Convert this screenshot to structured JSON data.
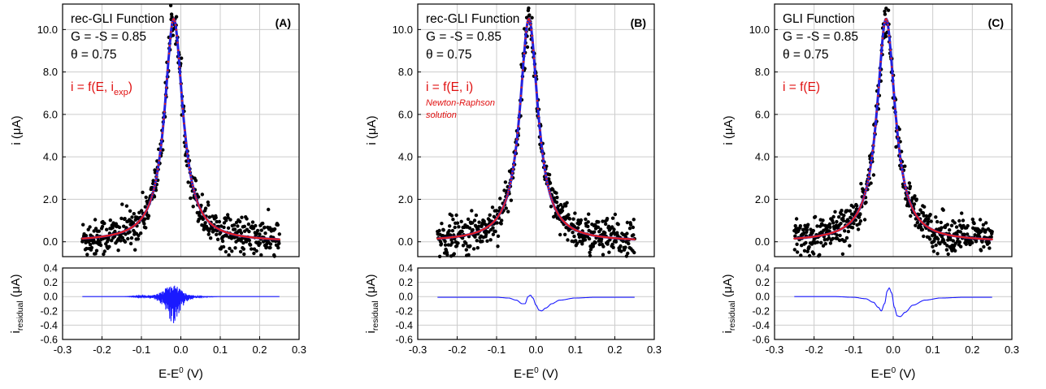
{
  "colors": {
    "points": "#000000",
    "fit_line": "#2020e0",
    "model_dots": "#e02020",
    "residual_line": "#1a1aff",
    "annotation_red": "#e01010",
    "grid": "#cccccc"
  },
  "chart_data": [
    {
      "type": "scatter",
      "panel": "A",
      "label": "(A)",
      "annotations": [
        "rec-GLI Function",
        "G = -S = 0.85",
        "θ = 0.75"
      ],
      "equation": {
        "main": "i = f(E, i",
        "sub": "exp",
        "tail": ")"
      },
      "note": [],
      "xlabel": {
        "main": "E-E",
        "sup": "0",
        "tail": " (V)"
      },
      "ylabel": "i (μA)",
      "residual_ylabel": {
        "main": "i",
        "sub": "residual",
        "tail": " (μA)"
      },
      "xlim": [
        -0.3,
        0.3
      ],
      "ylim": [
        -0.7,
        11.2
      ],
      "residual_ylim": [
        -0.6,
        0.4
      ],
      "xticks": [
        "-0.3",
        "-0.2",
        "-0.1",
        "0.0",
        "0.1",
        "0.2",
        "0.3"
      ],
      "yticks": [
        "0.0",
        "2.0",
        "4.0",
        "6.0",
        "8.0",
        "10.0"
      ],
      "residual_yticks": [
        "-0.6",
        "-0.4",
        "-0.2",
        "0.0",
        "0.2",
        "0.4"
      ],
      "peak": {
        "x0": -0.018,
        "height": 10.5,
        "width": 0.028
      },
      "noise_amplitude": 0.45,
      "residual": {
        "style": "noisy",
        "x": [
          -0.25,
          -0.15,
          -0.1,
          -0.08,
          -0.06,
          -0.045,
          -0.035,
          -0.025,
          -0.018,
          -0.01,
          0.0,
          0.01,
          0.025,
          0.04,
          0.06,
          0.1,
          0.25
        ],
        "y": [
          0.0,
          0.0,
          -0.01,
          -0.03,
          -0.06,
          -0.12,
          -0.22,
          -0.4,
          -0.42,
          -0.3,
          -0.2,
          -0.1,
          -0.05,
          -0.02,
          -0.01,
          0.0,
          0.0
        ],
        "y_upper": [
          0.0,
          0.0,
          0.01,
          0.02,
          0.04,
          0.08,
          0.14,
          0.17,
          0.18,
          0.16,
          0.1,
          0.05,
          0.03,
          0.01,
          0.0,
          0.0,
          0.0
        ]
      }
    },
    {
      "type": "scatter",
      "panel": "B",
      "label": "(B)",
      "annotations": [
        "rec-GLI Function",
        "G = -S = 0.85",
        "θ = 0.75"
      ],
      "equation": {
        "main": "i = f(E, i)",
        "sub": "",
        "tail": ""
      },
      "note": [
        "Newton-Raphson",
        "solution"
      ],
      "xlabel": {
        "main": "E-E",
        "sup": "0",
        "tail": " (V)"
      },
      "ylabel": "i (μA)",
      "residual_ylabel": {
        "main": "i",
        "sub": "residual",
        "tail": " (μA)"
      },
      "xlim": [
        -0.3,
        0.3
      ],
      "ylim": [
        -0.7,
        11.2
      ],
      "residual_ylim": [
        -0.6,
        0.4
      ],
      "xticks": [
        "-0.3",
        "-0.2",
        "-0.1",
        "0.0",
        "0.1",
        "0.2",
        "0.3"
      ],
      "yticks": [
        "0.0",
        "2.0",
        "4.0",
        "6.0",
        "8.0",
        "10.0"
      ],
      "residual_yticks": [
        "-0.6",
        "-0.4",
        "-0.2",
        "0.0",
        "0.2",
        "0.4"
      ],
      "peak": {
        "x0": -0.018,
        "height": 10.5,
        "width": 0.028
      },
      "noise_amplitude": 0.45,
      "residual": {
        "style": "smooth",
        "x": [
          -0.25,
          -0.15,
          -0.1,
          -0.07,
          -0.05,
          -0.035,
          -0.028,
          -0.02,
          -0.014,
          -0.008,
          0.0,
          0.008,
          0.014,
          0.025,
          0.04,
          0.06,
          0.1,
          0.15,
          0.25
        ],
        "y": [
          -0.01,
          -0.01,
          -0.01,
          -0.02,
          -0.05,
          -0.1,
          -0.1,
          0.0,
          0.02,
          -0.02,
          -0.12,
          -0.19,
          -0.2,
          -0.16,
          -0.1,
          -0.05,
          -0.02,
          -0.01,
          -0.01
        ]
      }
    },
    {
      "type": "scatter",
      "panel": "C",
      "label": "(C)",
      "annotations": [
        "GLI Function",
        "G = -S = 0.85",
        "θ = 0.75"
      ],
      "equation": {
        "main": "i = f(E)",
        "sub": "",
        "tail": ""
      },
      "note": [],
      "xlabel": {
        "main": "E-E",
        "sup": "0",
        "tail": " (V)"
      },
      "ylabel": "i (μA)",
      "residual_ylabel": {
        "main": "i",
        "sub": "residual",
        "tail": " (μA)"
      },
      "xlim": [
        -0.3,
        0.3
      ],
      "ylim": [
        -0.7,
        11.2
      ],
      "residual_ylim": [
        -0.6,
        0.4
      ],
      "xticks": [
        "-0.3",
        "-0.2",
        "-0.1",
        "0.0",
        "0.1",
        "0.2",
        "0.3"
      ],
      "yticks": [
        "0.0",
        "2.0",
        "4.0",
        "6.0",
        "8.0",
        "10.0"
      ],
      "residual_yticks": [
        "-0.6",
        "-0.4",
        "-0.2",
        "0.0",
        "0.2",
        "0.4"
      ],
      "peak": {
        "x0": -0.018,
        "height": 10.5,
        "width": 0.028
      },
      "noise_amplitude": 0.45,
      "residual": {
        "style": "smooth",
        "x": [
          -0.25,
          -0.15,
          -0.1,
          -0.07,
          -0.05,
          -0.038,
          -0.03,
          -0.022,
          -0.015,
          -0.01,
          -0.004,
          0.003,
          0.01,
          0.018,
          0.03,
          0.05,
          0.08,
          0.12,
          0.18,
          0.25
        ],
        "y": [
          0.0,
          0.0,
          -0.01,
          -0.03,
          -0.08,
          -0.15,
          -0.2,
          -0.1,
          0.08,
          0.12,
          0.05,
          -0.15,
          -0.27,
          -0.28,
          -0.22,
          -0.12,
          -0.05,
          -0.02,
          -0.01,
          -0.01
        ]
      }
    }
  ]
}
